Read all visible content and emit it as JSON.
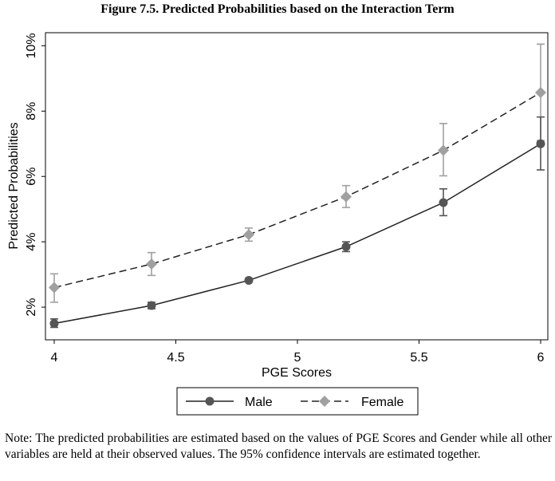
{
  "figure_title": "Figure 7.5. Predicted Probabilities based on the Interaction Term",
  "note": "Note: The predicted probabilities are estimated based on the values of PGE Scores and Gender while all other variables are held at their observed values. The 95% confidence intervals are estimated together.",
  "chart_data": {
    "type": "line",
    "title": "",
    "xlabel": "PGE Scores",
    "ylabel": "Predicted Probabilities",
    "xlim": [
      4,
      6
    ],
    "ylim": [
      1.0,
      10.4
    ],
    "x_ticks": [
      4,
      4.5,
      5,
      5.5,
      6
    ],
    "x_tick_labels": [
      "4",
      "4.5",
      "5",
      "5.5",
      "6"
    ],
    "y_ticks": [
      2,
      4,
      6,
      8,
      10
    ],
    "y_tick_labels": [
      "2%",
      "4%",
      "6%",
      "8%",
      "10%"
    ],
    "grid": false,
    "legend_position": "bottom",
    "x": [
      4,
      4.4,
      4.8,
      5.2,
      5.6,
      6
    ],
    "series": [
      {
        "name": "Male",
        "color": "#555555",
        "marker": "circle",
        "line_style": "solid",
        "values": [
          1.5,
          2.05,
          2.82,
          3.85,
          5.2,
          7.0
        ],
        "ci_low": [
          1.38,
          1.95,
          2.78,
          3.7,
          4.8,
          6.2
        ],
        "ci_high": [
          1.64,
          2.15,
          2.88,
          4.0,
          5.62,
          7.82
        ]
      },
      {
        "name": "Female",
        "color": "#a0a0a0",
        "marker": "diamond",
        "line_style": "dashed",
        "values": [
          2.6,
          3.32,
          4.22,
          5.38,
          6.8,
          8.57
        ],
        "ci_low": [
          2.15,
          2.97,
          4.02,
          5.05,
          6.02,
          7.1
        ],
        "ci_high": [
          3.02,
          3.67,
          4.42,
          5.72,
          7.62,
          10.05
        ]
      }
    ]
  }
}
